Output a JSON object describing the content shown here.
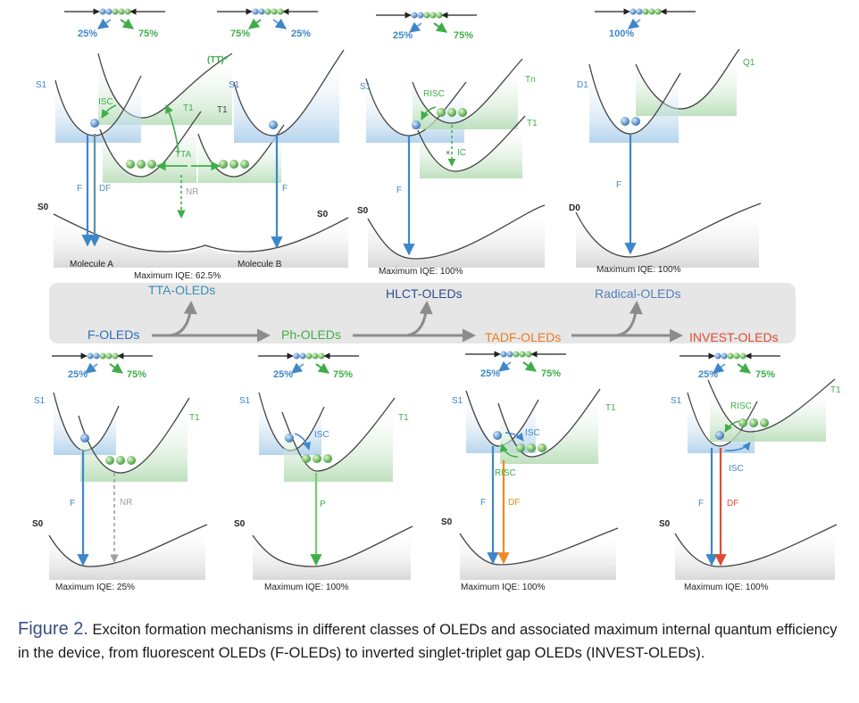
{
  "colors": {
    "singlet": "#3d87c9",
    "triplet": "#3fae49",
    "nr": "#a0a0a0",
    "tadf_df": "#f08a24",
    "invest_df": "#e04a35",
    "ground": "#333333",
    "band": "#e6e6e6",
    "tta_label": "#3a8fb0",
    "hlct_label": "#2d4f8c",
    "radical_label": "#5580b8",
    "tadf_label": "#ee7a1e",
    "invest_label": "#e04a35"
  },
  "flow": {
    "f_oleds": "F-OLEDs",
    "tta_oleds": "TTA-OLEDs",
    "ph_oleds": "Ph-OLEDs",
    "hlct_oleds": "HLCT-OLEDs",
    "tadf_oleds": "TADF-OLEDs",
    "radical_oleds": "Radical-OLEDs",
    "invest_oleds": "INVEST-OLEDs"
  },
  "tta": {
    "pct_left_s": "25%",
    "pct_left_t": "75%",
    "pct_right_t": "75%",
    "pct_right_s": "25%",
    "s1_left": "S1",
    "s1_right": "S1",
    "tt": "(TT)*",
    "t1_a": "T1",
    "t1_b": "T1",
    "isc": "ISC",
    "tta": "TTA",
    "nr": "NR",
    "f_left": "F",
    "df": "DF",
    "f_right": "F",
    "s0_left": "S0",
    "s0_right": "S0",
    "mol_a": "Molecule A",
    "mol_b": "Molecule B",
    "iqe": "Maximum IQE: 62.5%"
  },
  "hlct": {
    "pct_s": "25%",
    "pct_t": "75%",
    "s1": "S1",
    "tn": "Tn",
    "t1": "T1",
    "risc": "RISC",
    "ic": "IC",
    "f": "F",
    "s0": "S0",
    "iqe": "Maximum IQE: 100%"
  },
  "radical": {
    "pct": "100%",
    "d1": "D1",
    "q1": "Q1",
    "f": "F",
    "d0": "D0",
    "iqe": "Maximum IQE: 100%"
  },
  "fl": {
    "pct_s": "25%",
    "pct_t": "75%",
    "s1": "S1",
    "t1": "T1",
    "f": "F",
    "nr": "NR",
    "s0": "S0",
    "iqe": "Maximum IQE: 25%"
  },
  "ph": {
    "pct_s": "25%",
    "pct_t": "75%",
    "s1": "S1",
    "t1": "T1",
    "isc": "ISC",
    "p": "P",
    "s0": "S0",
    "iqe": "Maximum IQE: 100%"
  },
  "tadf": {
    "pct_s": "25%",
    "pct_t": "75%",
    "s1": "S1",
    "t1": "T1",
    "isc": "ISC",
    "risc": "RISC",
    "f": "F",
    "df": "DF",
    "s0": "S0",
    "iqe": "Maximum IQE: 100%"
  },
  "invest": {
    "pct_s": "25%",
    "pct_t": "75%",
    "s1": "S1",
    "t1": "T1",
    "risc": "RISC",
    "isc": "ISC",
    "f": "F",
    "df": "DF",
    "s0": "S0",
    "iqe": "Maximum IQE: 100%"
  },
  "caption": {
    "label": "Figure 2.",
    "text": "Exciton formation mechanisms in different classes of OLEDs and associated maximum internal quantum efficiency in the device, from fluorescent OLEDs (F-OLEDs) to inverted singlet-triplet gap OLEDs (INVEST-OLEDs)."
  }
}
